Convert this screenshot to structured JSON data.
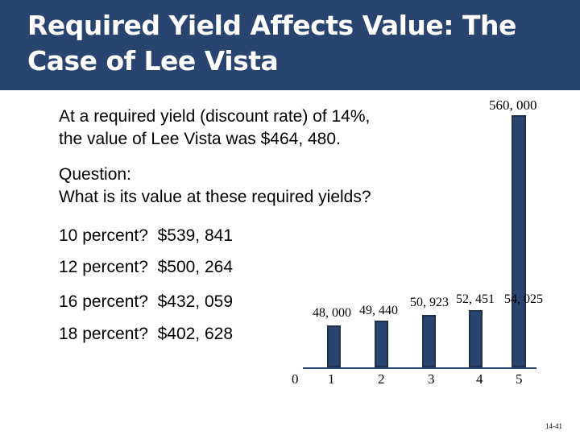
{
  "title": "Required Yield Affects Value: The Case of Lee Vista",
  "text": {
    "intro_line1": "At a required yield (discount rate) of 14%,",
    "intro_line2": "the value of Lee Vista was $464, 480.",
    "question_line1": "Question:",
    "question_line2": "What is its value at these required yields?",
    "answers": [
      {
        "label": "10 percent?",
        "value": "$539, 841"
      },
      {
        "label": "12 percent?",
        "value": "$500, 264"
      },
      {
        "label": "16 percent?",
        "value": "$432, 059"
      },
      {
        "label": "18 percent?",
        "value": "$402, 628"
      }
    ]
  },
  "cash_flow": {
    "periods": [
      "0",
      "1",
      "2",
      "3",
      "4",
      "5"
    ],
    "amounts": [
      null,
      48000,
      49440,
      50923,
      52451,
      560000
    ],
    "amount_labels": [
      "",
      "48, 000",
      "49, 440",
      "50, 923",
      "52, 451",
      "560, 000"
    ],
    "last_bar_annotation": "54, 025"
  },
  "page_number": "14-41",
  "colors": {
    "title_bar": "#2a4470",
    "bar": "#2a4470"
  }
}
